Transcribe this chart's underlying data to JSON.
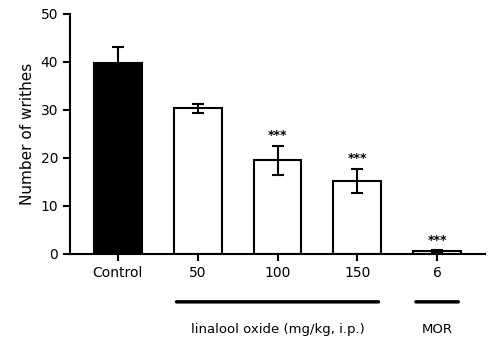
{
  "categories": [
    "Control",
    "50",
    "100",
    "150",
    "6"
  ],
  "values": [
    39.8,
    30.3,
    19.5,
    15.2,
    0.5
  ],
  "errors": [
    3.2,
    0.9,
    3.0,
    2.5,
    0.2
  ],
  "bar_colors": [
    "#000000",
    "#ffffff",
    "#ffffff",
    "#ffffff",
    "#ffffff"
  ],
  "bar_edgecolors": [
    "#000000",
    "#000000",
    "#000000",
    "#000000",
    "#000000"
  ],
  "significance": [
    "",
    "",
    "***",
    "***",
    "***"
  ],
  "ylabel": "Number of writhes",
  "ylim": [
    0,
    50
  ],
  "yticks": [
    0,
    10,
    20,
    30,
    40,
    50
  ],
  "group_label_1": "linalool oxide (mg/kg, i.p.)",
  "group_label_2": "MOR",
  "bar_width": 0.6,
  "figsize": [
    5.0,
    3.43
  ],
  "dpi": 100,
  "xlim": [
    -0.6,
    4.6
  ]
}
